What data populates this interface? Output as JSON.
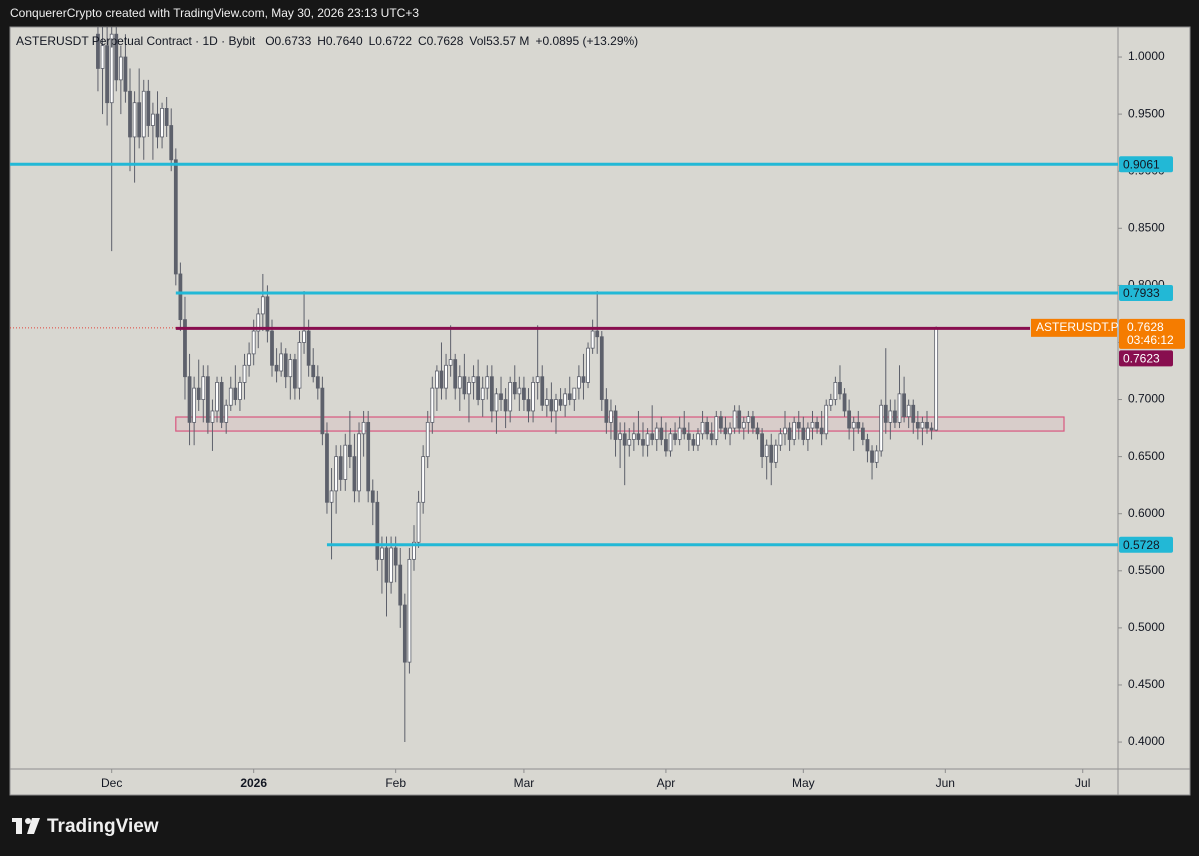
{
  "attribution": "ConquererCrypto created with TradingView.com, May 30, 2026 23:13 UTC+3",
  "brand": "TradingView",
  "chart_data": {
    "type": "candlestick",
    "legend": {
      "symbol": "ASTERUSDT Perpetual Contract · 1D · Bybit",
      "ohlc": [
        "O0.6733",
        "H0.7640",
        "L0.6722",
        "C0.7628"
      ],
      "volume": "Vol53.57 M",
      "change": "+0.0895 (+13.29%)"
    },
    "up_color": "#ffffff",
    "down_color": "#5d606b",
    "wick_color": "#5d606b",
    "candles": [
      [
        1.02,
        1.05,
        0.97,
        0.99
      ],
      [
        0.99,
        1.03,
        0.95,
        1.01
      ],
      [
        1.01,
        1.04,
        0.94,
        0.96
      ],
      [
        0.96,
        1.03,
        0.83,
        1.02
      ],
      [
        1.02,
        1.04,
        0.97,
        0.98
      ],
      [
        0.98,
        1.01,
        0.95,
        1.0
      ],
      [
        1.0,
        1.02,
        0.96,
        0.97
      ],
      [
        0.97,
        0.99,
        0.9,
        0.93
      ],
      [
        0.93,
        0.97,
        0.89,
        0.96
      ],
      [
        0.96,
        0.99,
        0.92,
        0.93
      ],
      [
        0.93,
        0.98,
        0.91,
        0.97
      ],
      [
        0.97,
        0.98,
        0.93,
        0.94
      ],
      [
        0.94,
        0.96,
        0.91,
        0.95
      ],
      [
        0.95,
        0.97,
        0.92,
        0.93
      ],
      [
        0.93,
        0.96,
        0.92,
        0.955
      ],
      [
        0.955,
        0.965,
        0.93,
        0.94
      ],
      [
        0.94,
        0.955,
        0.9,
        0.91
      ],
      [
        0.91,
        0.92,
        0.8,
        0.81
      ],
      [
        0.81,
        0.82,
        0.76,
        0.77
      ],
      [
        0.77,
        0.79,
        0.7,
        0.72
      ],
      [
        0.72,
        0.74,
        0.66,
        0.68
      ],
      [
        0.68,
        0.72,
        0.66,
        0.71
      ],
      [
        0.71,
        0.735,
        0.69,
        0.7
      ],
      [
        0.7,
        0.73,
        0.68,
        0.72
      ],
      [
        0.72,
        0.73,
        0.67,
        0.68
      ],
      [
        0.68,
        0.7,
        0.655,
        0.69
      ],
      [
        0.69,
        0.72,
        0.68,
        0.715
      ],
      [
        0.715,
        0.72,
        0.675,
        0.68
      ],
      [
        0.68,
        0.7,
        0.67,
        0.695
      ],
      [
        0.695,
        0.72,
        0.69,
        0.71
      ],
      [
        0.71,
        0.73,
        0.695,
        0.7
      ],
      [
        0.7,
        0.72,
        0.69,
        0.715
      ],
      [
        0.715,
        0.74,
        0.7,
        0.73
      ],
      [
        0.73,
        0.75,
        0.72,
        0.74
      ],
      [
        0.74,
        0.77,
        0.73,
        0.76
      ],
      [
        0.76,
        0.78,
        0.745,
        0.775
      ],
      [
        0.775,
        0.81,
        0.76,
        0.79
      ],
      [
        0.79,
        0.8,
        0.75,
        0.76
      ],
      [
        0.76,
        0.77,
        0.72,
        0.73
      ],
      [
        0.73,
        0.745,
        0.715,
        0.725
      ],
      [
        0.725,
        0.75,
        0.72,
        0.74
      ],
      [
        0.74,
        0.745,
        0.71,
        0.72
      ],
      [
        0.72,
        0.74,
        0.7,
        0.735
      ],
      [
        0.735,
        0.74,
        0.7,
        0.71
      ],
      [
        0.71,
        0.76,
        0.7,
        0.75
      ],
      [
        0.75,
        0.795,
        0.74,
        0.76
      ],
      [
        0.76,
        0.77,
        0.72,
        0.73
      ],
      [
        0.73,
        0.745,
        0.715,
        0.72
      ],
      [
        0.72,
        0.73,
        0.7,
        0.71
      ],
      [
        0.71,
        0.72,
        0.66,
        0.67
      ],
      [
        0.67,
        0.68,
        0.6,
        0.61
      ],
      [
        0.61,
        0.64,
        0.56,
        0.62
      ],
      [
        0.62,
        0.66,
        0.6,
        0.65
      ],
      [
        0.65,
        0.66,
        0.62,
        0.63
      ],
      [
        0.63,
        0.67,
        0.62,
        0.66
      ],
      [
        0.66,
        0.69,
        0.64,
        0.65
      ],
      [
        0.65,
        0.67,
        0.61,
        0.62
      ],
      [
        0.62,
        0.68,
        0.61,
        0.67
      ],
      [
        0.67,
        0.69,
        0.65,
        0.68
      ],
      [
        0.68,
        0.69,
        0.61,
        0.62
      ],
      [
        0.62,
        0.63,
        0.59,
        0.61
      ],
      [
        0.61,
        0.62,
        0.55,
        0.56
      ],
      [
        0.56,
        0.58,
        0.53,
        0.57
      ],
      [
        0.57,
        0.58,
        0.51,
        0.54
      ],
      [
        0.54,
        0.58,
        0.53,
        0.57
      ],
      [
        0.57,
        0.58,
        0.54,
        0.555
      ],
      [
        0.555,
        0.57,
        0.5,
        0.52
      ],
      [
        0.52,
        0.53,
        0.4,
        0.47
      ],
      [
        0.47,
        0.57,
        0.46,
        0.56
      ],
      [
        0.56,
        0.59,
        0.55,
        0.575
      ],
      [
        0.575,
        0.62,
        0.57,
        0.61
      ],
      [
        0.61,
        0.66,
        0.6,
        0.65
      ],
      [
        0.65,
        0.69,
        0.64,
        0.68
      ],
      [
        0.68,
        0.72,
        0.67,
        0.71
      ],
      [
        0.71,
        0.73,
        0.69,
        0.725
      ],
      [
        0.725,
        0.75,
        0.7,
        0.71
      ],
      [
        0.71,
        0.74,
        0.7,
        0.73
      ],
      [
        0.73,
        0.765,
        0.72,
        0.735
      ],
      [
        0.735,
        0.74,
        0.7,
        0.71
      ],
      [
        0.71,
        0.73,
        0.69,
        0.72
      ],
      [
        0.72,
        0.74,
        0.7,
        0.705
      ],
      [
        0.705,
        0.72,
        0.68,
        0.715
      ],
      [
        0.715,
        0.73,
        0.7,
        0.72
      ],
      [
        0.72,
        0.735,
        0.695,
        0.7
      ],
      [
        0.7,
        0.72,
        0.685,
        0.71
      ],
      [
        0.71,
        0.73,
        0.7,
        0.72
      ],
      [
        0.72,
        0.73,
        0.68,
        0.69
      ],
      [
        0.69,
        0.71,
        0.67,
        0.705
      ],
      [
        0.705,
        0.72,
        0.69,
        0.7
      ],
      [
        0.7,
        0.71,
        0.675,
        0.69
      ],
      [
        0.69,
        0.72,
        0.68,
        0.715
      ],
      [
        0.715,
        0.73,
        0.7,
        0.705
      ],
      [
        0.705,
        0.72,
        0.69,
        0.71
      ],
      [
        0.71,
        0.72,
        0.69,
        0.7
      ],
      [
        0.7,
        0.71,
        0.68,
        0.69
      ],
      [
        0.69,
        0.72,
        0.68,
        0.715
      ],
      [
        0.715,
        0.765,
        0.7,
        0.72
      ],
      [
        0.72,
        0.73,
        0.69,
        0.695
      ],
      [
        0.695,
        0.71,
        0.685,
        0.7
      ],
      [
        0.7,
        0.715,
        0.68,
        0.69
      ],
      [
        0.69,
        0.705,
        0.67,
        0.7
      ],
      [
        0.7,
        0.71,
        0.69,
        0.695
      ],
      [
        0.695,
        0.71,
        0.685,
        0.705
      ],
      [
        0.705,
        0.72,
        0.695,
        0.7
      ],
      [
        0.7,
        0.71,
        0.69,
        0.71
      ],
      [
        0.71,
        0.73,
        0.7,
        0.72
      ],
      [
        0.72,
        0.74,
        0.7,
        0.715
      ],
      [
        0.715,
        0.75,
        0.71,
        0.745
      ],
      [
        0.745,
        0.77,
        0.74,
        0.76
      ],
      [
        0.76,
        0.795,
        0.74,
        0.755
      ],
      [
        0.755,
        0.76,
        0.69,
        0.7
      ],
      [
        0.7,
        0.71,
        0.67,
        0.68
      ],
      [
        0.68,
        0.7,
        0.665,
        0.69
      ],
      [
        0.69,
        0.695,
        0.65,
        0.665
      ],
      [
        0.665,
        0.68,
        0.64,
        0.67
      ],
      [
        0.67,
        0.68,
        0.625,
        0.66
      ],
      [
        0.66,
        0.675,
        0.65,
        0.665
      ],
      [
        0.665,
        0.68,
        0.655,
        0.67
      ],
      [
        0.67,
        0.69,
        0.66,
        0.665
      ],
      [
        0.665,
        0.68,
        0.65,
        0.66
      ],
      [
        0.66,
        0.675,
        0.65,
        0.67
      ],
      [
        0.67,
        0.695,
        0.66,
        0.665
      ],
      [
        0.665,
        0.68,
        0.655,
        0.675
      ],
      [
        0.675,
        0.685,
        0.66,
        0.665
      ],
      [
        0.665,
        0.68,
        0.65,
        0.655
      ],
      [
        0.655,
        0.675,
        0.65,
        0.67
      ],
      [
        0.67,
        0.68,
        0.66,
        0.665
      ],
      [
        0.665,
        0.685,
        0.66,
        0.675
      ],
      [
        0.675,
        0.69,
        0.665,
        0.67
      ],
      [
        0.67,
        0.68,
        0.655,
        0.665
      ],
      [
        0.665,
        0.67,
        0.655,
        0.66
      ],
      [
        0.66,
        0.675,
        0.655,
        0.67
      ],
      [
        0.67,
        0.69,
        0.665,
        0.68
      ],
      [
        0.68,
        0.685,
        0.665,
        0.67
      ],
      [
        0.67,
        0.68,
        0.66,
        0.665
      ],
      [
        0.665,
        0.69,
        0.66,
        0.685
      ],
      [
        0.685,
        0.69,
        0.67,
        0.675
      ],
      [
        0.675,
        0.685,
        0.665,
        0.67
      ],
      [
        0.67,
        0.68,
        0.66,
        0.675
      ],
      [
        0.675,
        0.695,
        0.67,
        0.69
      ],
      [
        0.69,
        0.695,
        0.67,
        0.675
      ],
      [
        0.675,
        0.685,
        0.665,
        0.68
      ],
      [
        0.68,
        0.69,
        0.67,
        0.685
      ],
      [
        0.685,
        0.69,
        0.67,
        0.675
      ],
      [
        0.675,
        0.68,
        0.665,
        0.67
      ],
      [
        0.67,
        0.675,
        0.64,
        0.65
      ],
      [
        0.65,
        0.665,
        0.63,
        0.66
      ],
      [
        0.66,
        0.67,
        0.625,
        0.645
      ],
      [
        0.645,
        0.665,
        0.64,
        0.66
      ],
      [
        0.66,
        0.675,
        0.655,
        0.67
      ],
      [
        0.67,
        0.69,
        0.66,
        0.675
      ],
      [
        0.675,
        0.68,
        0.655,
        0.665
      ],
      [
        0.665,
        0.685,
        0.66,
        0.68
      ],
      [
        0.68,
        0.69,
        0.665,
        0.675
      ],
      [
        0.675,
        0.685,
        0.66,
        0.665
      ],
      [
        0.665,
        0.68,
        0.655,
        0.675
      ],
      [
        0.675,
        0.69,
        0.665,
        0.68
      ],
      [
        0.68,
        0.685,
        0.67,
        0.675
      ],
      [
        0.675,
        0.69,
        0.66,
        0.67
      ],
      [
        0.67,
        0.7,
        0.665,
        0.695
      ],
      [
        0.695,
        0.705,
        0.69,
        0.7
      ],
      [
        0.7,
        0.72,
        0.695,
        0.715
      ],
      [
        0.715,
        0.73,
        0.7,
        0.705
      ],
      [
        0.705,
        0.71,
        0.685,
        0.69
      ],
      [
        0.69,
        0.7,
        0.665,
        0.675
      ],
      [
        0.675,
        0.685,
        0.655,
        0.68
      ],
      [
        0.68,
        0.69,
        0.67,
        0.675
      ],
      [
        0.675,
        0.68,
        0.66,
        0.665
      ],
      [
        0.665,
        0.67,
        0.645,
        0.655
      ],
      [
        0.655,
        0.66,
        0.63,
        0.645
      ],
      [
        0.645,
        0.66,
        0.64,
        0.655
      ],
      [
        0.655,
        0.7,
        0.65,
        0.695
      ],
      [
        0.695,
        0.745,
        0.67,
        0.68
      ],
      [
        0.68,
        0.7,
        0.665,
        0.69
      ],
      [
        0.69,
        0.7,
        0.675,
        0.68
      ],
      [
        0.68,
        0.73,
        0.675,
        0.705
      ],
      [
        0.705,
        0.72,
        0.68,
        0.685
      ],
      [
        0.685,
        0.7,
        0.675,
        0.695
      ],
      [
        0.695,
        0.7,
        0.67,
        0.68
      ],
      [
        0.68,
        0.69,
        0.665,
        0.675
      ],
      [
        0.675,
        0.685,
        0.66,
        0.68
      ],
      [
        0.68,
        0.69,
        0.67,
        0.675
      ],
      [
        0.675,
        0.68,
        0.665,
        0.6733
      ],
      [
        0.6733,
        0.764,
        0.6722,
        0.7628
      ]
    ],
    "xlim": [
      -19.2,
      222.7
    ],
    "xticks": [
      {
        "value": 3,
        "label": "Dec"
      },
      {
        "value": 34,
        "label": "2026"
      },
      {
        "value": 65,
        "label": "Feb"
      },
      {
        "value": 93,
        "label": "Mar"
      },
      {
        "value": 124,
        "label": "Apr"
      },
      {
        "value": 154,
        "label": "May"
      },
      {
        "value": 185,
        "label": "Jun"
      },
      {
        "value": 215,
        "label": "Jul"
      }
    ],
    "ylim": [
      0.3764,
      1.0263
    ],
    "yticks": [
      {
        "value": 0.4,
        "label": "0.4000"
      },
      {
        "value": 0.45,
        "label": "0.4500"
      },
      {
        "value": 0.5,
        "label": "0.5000"
      },
      {
        "value": 0.55,
        "label": "0.5500"
      },
      {
        "value": 0.6,
        "label": "0.6000"
      },
      {
        "value": 0.65,
        "label": "0.6500"
      },
      {
        "value": 0.7,
        "label": "0.7000"
      },
      {
        "value": 0.75,
        "label": "0.7500"
      },
      {
        "value": 0.8,
        "label": "0.8000"
      },
      {
        "value": 0.85,
        "label": "0.8500"
      },
      {
        "value": 0.9,
        "label": "0.9000"
      },
      {
        "value": 0.95,
        "label": "0.9500"
      },
      {
        "value": 1.0,
        "label": "1.0000"
      }
    ],
    "grid": false,
    "levels": [
      {
        "value": 0.9061,
        "color": "#22b8d6"
      },
      {
        "value": 0.7933,
        "color": "#22b8d6"
      },
      {
        "value": 0.5728,
        "color": "#22b8d6"
      }
    ],
    "zone": {
      "range": [
        0.6724,
        0.6847
      ],
      "color": "#d9577f"
    },
    "last_price": {
      "value": 0.7628,
      "tag": "ASTERUSDT.P",
      "countdown": "03:46:12",
      "color": "#f57c00"
    },
    "prev_close": {
      "value": 0.7623,
      "color": "#880e4f"
    }
  }
}
